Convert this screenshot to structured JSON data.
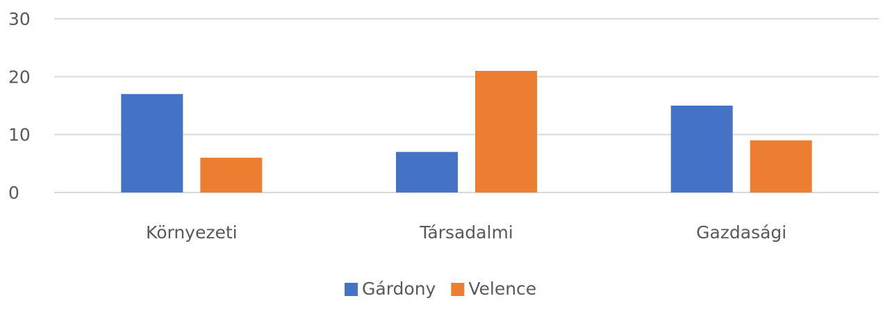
{
  "chart_data": {
    "type": "bar",
    "title": "",
    "xlabel": "",
    "ylabel": "",
    "categories": [
      "Környezeti",
      "Társadalmi",
      "Gazdasági"
    ],
    "series": [
      {
        "name": "Gárdony",
        "values": [
          17,
          7,
          15
        ],
        "color": "#4472C4"
      },
      {
        "name": "Velence",
        "values": [
          6,
          21,
          9
        ],
        "color": "#ED7D31"
      }
    ],
    "ylim": [
      0,
      30
    ],
    "yticks": [
      "0",
      "10",
      "20",
      "30"
    ],
    "grid": true,
    "legend_position": "bottom"
  },
  "colors": {
    "grid": "#D9D9D9",
    "text": "#595959"
  }
}
